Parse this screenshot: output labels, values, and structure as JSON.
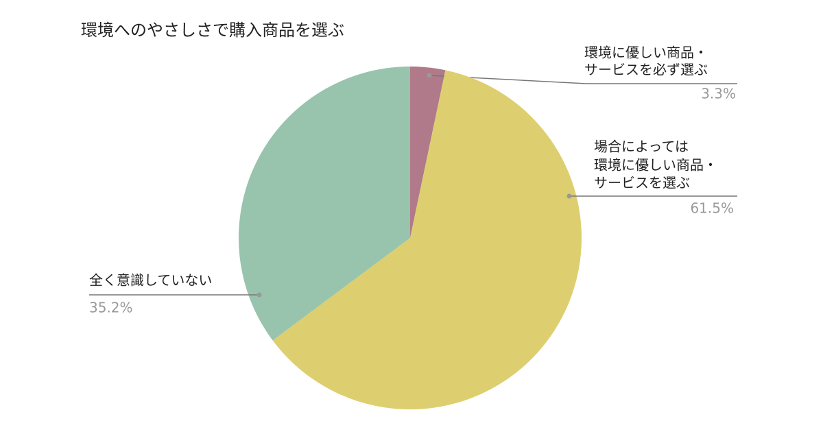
{
  "chart_data": {
    "type": "pie",
    "title": "環境へのやさしさで購入商品を選ぶ",
    "categories": [
      [
        "環境に優しい商品・",
        "サービスを必ず選ぶ"
      ],
      [
        "場合によっては",
        "環境に優しい商品・",
        "サービスを選ぶ"
      ],
      [
        "全く意識していない"
      ]
    ],
    "values": [
      3.3,
      61.5,
      35.2
    ],
    "value_labels": [
      "3.3%",
      "61.5%",
      "35.2%"
    ],
    "colors": [
      "#b07a8a",
      "#ddcf6f",
      "#98c4ae"
    ]
  }
}
